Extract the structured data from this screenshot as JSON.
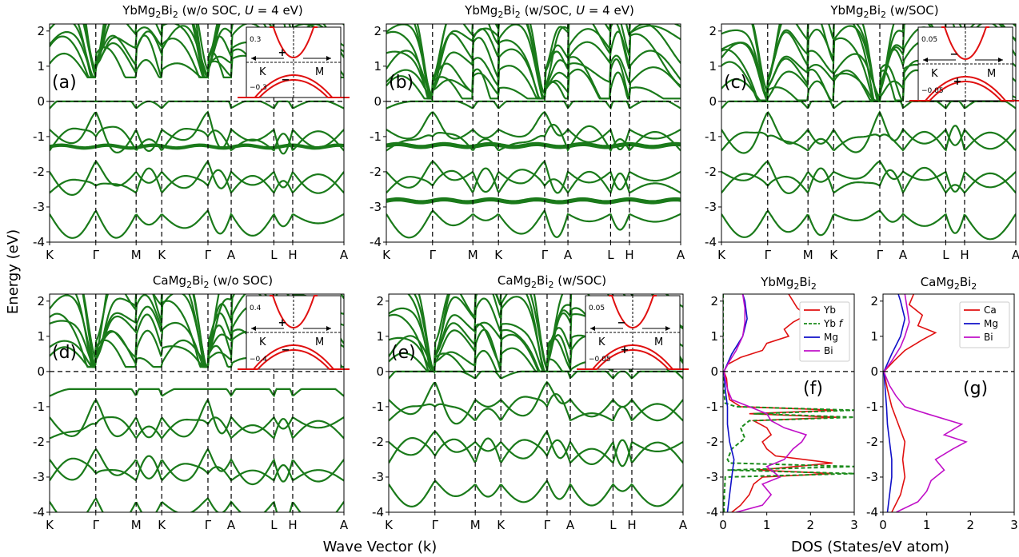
{
  "figure": {
    "ylabel": "Energy (eV)",
    "xlabel_bands": "Wave Vector (k)",
    "xlabel_dos": "DOS (States/eV atom)",
    "colors": {
      "band": "#1a7a1a",
      "inset": "#e01010",
      "marker": "#1f77b4",
      "Yb": "#e01010",
      "Ybf": "#1a8a1a",
      "Mg": "#1010c8",
      "Bi": "#c010c8",
      "Ca": "#e01010"
    }
  },
  "chart_data": [
    {
      "id": "a",
      "type": "line",
      "panel_label": "(a)",
      "title": {
        "prefix": "YbMg",
        "sub1": "2",
        "mid": "Bi",
        "sub2": "2",
        "suffix_pre": " (w/o SOC, ",
        "italic": "U",
        "suffix_post": " = 4 eV)"
      },
      "kpoints": [
        "K",
        "Γ",
        "M",
        "K",
        "Γ",
        "A",
        "L",
        "H",
        "A"
      ],
      "ylim": [
        -4,
        2.2
      ],
      "yticks": [
        "-4",
        "-3",
        "-2",
        "-1",
        "0",
        "1",
        "2"
      ],
      "flat_bands": [
        -1.27,
        -1.3
      ],
      "conduction_min": [
        0.7,
        0.72
      ],
      "valence_max": [
        0,
        -1.5
      ],
      "inset": {
        "ticks": [
          "0.3",
          "−0.3"
        ],
        "left": "K",
        "right": "M",
        "upper_sign": "+",
        "lower_sign": "−"
      }
    },
    {
      "id": "b",
      "type": "line",
      "panel_label": "(b)",
      "title": {
        "prefix": "YbMg",
        "sub1": "2",
        "mid": "Bi",
        "sub2": "2",
        "suffix_pre": " (w/SOC, ",
        "italic": "U",
        "suffix_post": " = 4 eV)"
      },
      "kpoints": [
        "K",
        "Γ",
        "M",
        "K",
        "Γ",
        "A",
        "L",
        "H",
        "A"
      ],
      "ylim": [
        -4,
        2.2
      ],
      "yticks": [
        "-4",
        "-3",
        "-2",
        "-1",
        "0",
        "1",
        "2"
      ],
      "flat_bands": [
        -1.23,
        -1.28,
        -2.8,
        -2.85
      ],
      "conduction_min": [
        0.1,
        0.12
      ],
      "valence_max": [
        0,
        -0.5
      ]
    },
    {
      "id": "c",
      "type": "line",
      "panel_label": "(c)",
      "title": {
        "prefix": "YbMg",
        "sub1": "2",
        "mid": "Bi",
        "sub2": "2",
        "suffix_pre": " (w/SOC)",
        "italic": "",
        "suffix_post": ""
      },
      "kpoints": [
        "K",
        "Γ",
        "M",
        "K",
        "Γ",
        "A",
        "L",
        "H",
        "A"
      ],
      "ylim": [
        -4,
        2.2
      ],
      "yticks": [
        "-4",
        "-3",
        "-2",
        "-1",
        "0",
        "1",
        "2"
      ],
      "flat_bands": [],
      "conduction_min": [
        0.05,
        0.05
      ],
      "valence_max": [
        0,
        -0.3
      ],
      "inset": {
        "ticks": [
          "0.05",
          "−0.05"
        ],
        "left": "K",
        "right": "M",
        "upper_sign": "−",
        "lower_sign": "+"
      }
    },
    {
      "id": "d",
      "type": "line",
      "panel_label": "(d)",
      "title": {
        "prefix": "CaMg",
        "sub1": "2",
        "mid": "Bi",
        "sub2": "2",
        "suffix_pre": " (w/o SOC)",
        "italic": "",
        "suffix_post": ""
      },
      "kpoints": [
        "K",
        "Γ",
        "M",
        "K",
        "Γ",
        "A",
        "L",
        "H",
        "A"
      ],
      "ylim": [
        -4,
        2.2
      ],
      "yticks": [
        "-4",
        "-3",
        "-2",
        "-1",
        "0",
        "1",
        "2"
      ],
      "flat_bands": [],
      "conduction_min": [
        0.15,
        0.18
      ],
      "valence_max": [
        -0.5,
        -1.6
      ],
      "inset": {
        "ticks": [
          "0.4",
          "−0.4"
        ],
        "left": "K",
        "right": "M",
        "upper_sign": "+",
        "lower_sign": "−"
      }
    },
    {
      "id": "e",
      "type": "line",
      "panel_label": "(e)",
      "title": {
        "prefix": "CaMg",
        "sub1": "2",
        "mid": "Bi",
        "sub2": "2",
        "suffix_pre": " (w/SOC)",
        "italic": "",
        "suffix_post": ""
      },
      "kpoints": [
        "K",
        "Γ",
        "M",
        "K",
        "Γ",
        "A",
        "L",
        "H",
        "A"
      ],
      "ylim": [
        -4,
        2.2
      ],
      "yticks": [
        "-4",
        "-3",
        "-2",
        "-1",
        "0",
        "1",
        "2"
      ],
      "flat_bands": [],
      "conduction_min": [
        0.02,
        0.02
      ],
      "valence_max": [
        0,
        -0.5
      ],
      "inset": {
        "ticks": [
          "0.05",
          "−0.05"
        ],
        "left": "K",
        "right": "M",
        "upper_sign": "−",
        "lower_sign": "+"
      }
    },
    {
      "id": "f",
      "type": "line",
      "panel_label": "(f)",
      "title": {
        "prefix": "YbMg",
        "sub1": "2",
        "mid": "Bi",
        "sub2": "2",
        "suffix_pre": "",
        "italic": "",
        "suffix_post": ""
      },
      "xlim": [
        0,
        3
      ],
      "xticks": [
        "0",
        "1",
        "2",
        "3"
      ],
      "ylim": [
        -4,
        2.2
      ],
      "yticks": [
        "-4",
        "-3",
        "-2",
        "-1",
        "0",
        "1",
        "2"
      ],
      "legend": [
        {
          "name": "Yb",
          "italic": "",
          "style": "solid",
          "color": "#e01010"
        },
        {
          "name": "Yb ",
          "italic": "f",
          "style": "dashed",
          "color": "#1a8a1a"
        },
        {
          "name": "Mg",
          "italic": "",
          "style": "solid",
          "color": "#1010c8"
        },
        {
          "name": "Bi",
          "italic": "",
          "style": "solid",
          "color": "#c010c8"
        }
      ],
      "series": [
        {
          "name": "Yb",
          "e": [
            -4,
            -3.8,
            -3.5,
            -3.2,
            -3.0,
            -2.9,
            -2.8,
            -2.6,
            -2.4,
            -2.2,
            -2.0,
            -1.8,
            -1.6,
            -1.4,
            -1.3,
            -1.2,
            -1.1,
            -1.0,
            -0.8,
            -0.5,
            -0.2,
            0,
            0.2,
            0.4,
            0.6,
            0.8,
            1.0,
            1.2,
            1.4,
            1.6,
            1.8,
            2.0,
            2.2
          ],
          "dos": [
            0.2,
            0.4,
            0.6,
            0.7,
            0.9,
            2.5,
            0.8,
            2.5,
            1.2,
            1.0,
            0.9,
            1.1,
            1.0,
            0.7,
            2.6,
            0.6,
            2.6,
            0.4,
            0.15,
            0.1,
            0.08,
            0.02,
            0.1,
            0.4,
            0.9,
            1.0,
            1.5,
            1.4,
            1.6,
            1.9,
            1.7,
            1.6,
            1.5
          ]
        },
        {
          "name": "Yb f",
          "e": [
            -4,
            -3.5,
            -3.0,
            -2.9,
            -2.8,
            -2.7,
            -2.6,
            -2.5,
            -2.2,
            -1.9,
            -1.6,
            -1.4,
            -1.3,
            -1.2,
            -1.1,
            -1.0,
            -0.9,
            -0.6,
            0,
            0.5,
            1.0,
            1.5,
            2.2
          ],
          "dos": [
            0.02,
            0.03,
            0.05,
            3.0,
            0.1,
            3.0,
            0.15,
            0.1,
            0.2,
            0.5,
            0.4,
            0.6,
            3.0,
            0.7,
            3.0,
            0.3,
            0.05,
            0.02,
            0.0,
            0.0,
            0.0,
            0.0,
            0.0
          ]
        },
        {
          "name": "Mg",
          "e": [
            -4,
            -3.5,
            -3.0,
            -2.5,
            -2.0,
            -1.5,
            -1.0,
            -0.5,
            0,
            0.5,
            1.0,
            1.5,
            2.0,
            2.2
          ],
          "dos": [
            0.1,
            0.15,
            0.2,
            0.25,
            0.15,
            0.1,
            0.1,
            0.05,
            0.02,
            0.2,
            0.45,
            0.55,
            0.5,
            0.45
          ]
        },
        {
          "name": "Bi",
          "e": [
            -4,
            -3.8,
            -3.5,
            -3.2,
            -3.0,
            -2.7,
            -2.5,
            -2.2,
            -2.0,
            -1.8,
            -1.6,
            -1.4,
            -1.2,
            -1.0,
            -0.8,
            -0.5,
            -0.2,
            0,
            0.3,
            0.6,
            1.0,
            1.4,
            1.8,
            2.2
          ],
          "dos": [
            0.3,
            0.9,
            1.1,
            0.9,
            1.3,
            1.0,
            1.4,
            1.6,
            1.8,
            1.9,
            1.4,
            1.1,
            1.0,
            0.6,
            0.2,
            0.1,
            0.05,
            0.02,
            0.15,
            0.3,
            0.45,
            0.5,
            0.5,
            0.45
          ]
        }
      ]
    },
    {
      "id": "g",
      "type": "line",
      "panel_label": "(g)",
      "title": {
        "prefix": "CaMg",
        "sub1": "2",
        "mid": "Bi",
        "sub2": "2",
        "suffix_pre": "",
        "italic": "",
        "suffix_post": ""
      },
      "xlim": [
        0,
        3
      ],
      "xticks": [
        "0",
        "1",
        "2",
        "3"
      ],
      "ylim": [
        -4,
        2.2
      ],
      "yticks": [
        "-4",
        "-3",
        "-2",
        "-1",
        "0",
        "1",
        "2"
      ],
      "legend": [
        {
          "name": "Ca",
          "italic": "",
          "style": "solid",
          "color": "#e01010"
        },
        {
          "name": "Mg",
          "italic": "",
          "style": "solid",
          "color": "#1010c8"
        },
        {
          "name": "Bi",
          "italic": "",
          "style": "solid",
          "color": "#c010c8"
        }
      ],
      "series": [
        {
          "name": "Ca",
          "e": [
            -4,
            -3.5,
            -3.0,
            -2.5,
            -2.0,
            -1.5,
            -1.0,
            -0.5,
            -0.2,
            0,
            0.3,
            0.6,
            0.9,
            1.1,
            1.3,
            1.6,
            1.9,
            2.2
          ],
          "dos": [
            0.2,
            0.4,
            0.5,
            0.45,
            0.5,
            0.35,
            0.2,
            0.1,
            0.05,
            0.02,
            0.25,
            0.5,
            0.9,
            1.2,
            0.8,
            0.9,
            0.6,
            0.7
          ]
        },
        {
          "name": "Mg",
          "e": [
            -4,
            -3.5,
            -3.0,
            -2.5,
            -2.0,
            -1.5,
            -1.0,
            -0.5,
            0,
            0.5,
            1.0,
            1.5,
            2.0,
            2.2
          ],
          "dos": [
            0.1,
            0.15,
            0.2,
            0.2,
            0.15,
            0.1,
            0.08,
            0.05,
            0.02,
            0.2,
            0.4,
            0.5,
            0.4,
            0.35
          ]
        },
        {
          "name": "Bi",
          "e": [
            -4,
            -3.7,
            -3.4,
            -3.1,
            -2.8,
            -2.5,
            -2.2,
            -2.0,
            -1.8,
            -1.5,
            -1.2,
            -1.0,
            -0.7,
            -0.4,
            -0.1,
            0,
            0.3,
            0.7,
            1.0,
            1.4,
            1.8,
            2.2
          ],
          "dos": [
            0.3,
            0.8,
            1.0,
            1.1,
            1.4,
            1.2,
            1.6,
            1.9,
            1.4,
            1.8,
            1.0,
            0.5,
            0.3,
            0.15,
            0.05,
            0.02,
            0.2,
            0.4,
            0.5,
            0.6,
            0.55,
            0.5
          ]
        }
      ]
    }
  ]
}
